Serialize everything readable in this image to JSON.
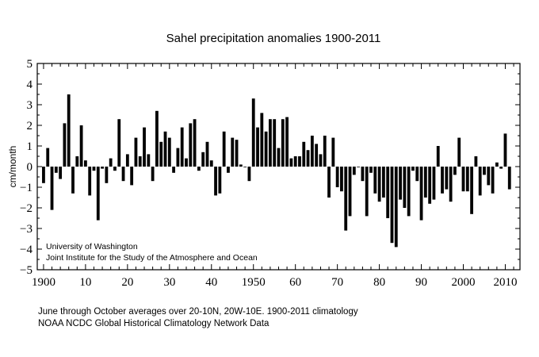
{
  "chart_data": {
    "type": "bar",
    "title": "Sahel precipitation anomalies 1900-2011",
    "ylabel": "cm/month",
    "xlabel": "",
    "ylim": [
      -5,
      5
    ],
    "xlim": [
      1898.5,
      2013.5
    ],
    "yticks": [
      5,
      4,
      3,
      2,
      1,
      0,
      -1,
      -2,
      -3,
      -4,
      -5
    ],
    "xticks": [
      1900,
      1910,
      1920,
      1930,
      1940,
      1950,
      1960,
      1970,
      1980,
      1990,
      2000,
      2010
    ],
    "xtick_labels": [
      "1900",
      "10",
      "20",
      "30",
      "40",
      "1950",
      "60",
      "70",
      "80",
      "90",
      "2000",
      "2010"
    ],
    "grid": false,
    "start_year": 1900,
    "values": [
      -0.8,
      0.9,
      -2.1,
      -0.3,
      -0.6,
      2.1,
      3.5,
      -1.3,
      0.5,
      2.0,
      0.3,
      -1.4,
      -0.2,
      -2.6,
      -0.1,
      -0.8,
      0.4,
      -0.2,
      2.3,
      -0.7,
      0.6,
      -0.9,
      1.4,
      0.5,
      1.9,
      0.6,
      -0.7,
      2.7,
      1.2,
      1.7,
      1.4,
      -0.3,
      0.9,
      1.9,
      0.4,
      2.1,
      2.3,
      -0.2,
      0.7,
      1.2,
      0.3,
      -1.4,
      -1.3,
      1.7,
      -0.3,
      1.4,
      1.3,
      0.1,
      0.0,
      -0.7,
      3.3,
      1.9,
      2.6,
      1.7,
      2.3,
      2.3,
      0.9,
      2.3,
      2.4,
      0.4,
      0.5,
      0.5,
      1.2,
      0.8,
      1.5,
      1.1,
      0.6,
      1.5,
      -1.5,
      1.4,
      -1.0,
      -1.2,
      -3.1,
      -2.4,
      -0.4,
      0.0,
      -0.7,
      -2.4,
      -0.3,
      -1.3,
      -1.7,
      -1.5,
      -2.5,
      -3.7,
      -3.9,
      -1.6,
      -2.0,
      -2.4,
      -0.2,
      -0.7,
      -2.6,
      -1.5,
      -1.8,
      -1.6,
      1.0,
      -1.3,
      -1.1,
      -1.7,
      -0.4,
      1.4,
      -1.2,
      -1.2,
      -2.3,
      0.5,
      -1.4,
      -0.4,
      -0.9,
      -1.3,
      0.2,
      -0.1,
      1.6,
      -1.1
    ],
    "annotations": [
      "University of Washington",
      "Joint Institute for the Study of the Atmosphere and Ocean"
    ],
    "footnotes": [
      "June through October averages over 20-10N, 20W-10E. 1900-2011 climatology",
      "NOAA NCDC Global Historical Climatology Network Data"
    ],
    "bar_color": "#000000"
  }
}
